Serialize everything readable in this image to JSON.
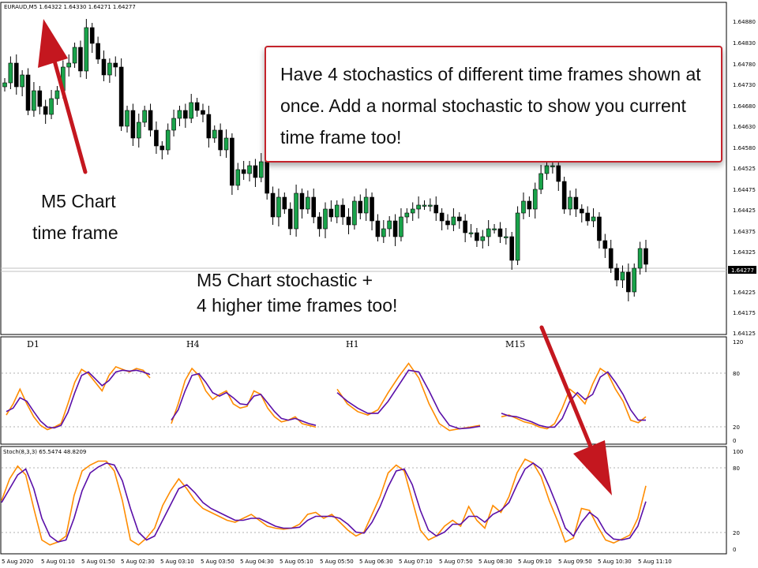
{
  "chart_header": {
    "symbol_line": "EURAUD,M5  1.64322 1.64330 1.64271 1.64277"
  },
  "annotations": {
    "callout": "Have 4 stochastics of different time frames shown at once. Add a normal stochastic to show you current time frame too!",
    "timeframe_note": [
      "M5 Chart",
      "time frame"
    ],
    "stochastic_note": [
      "M5 Chart stochastic +",
      "4 higher time frames too!"
    ]
  },
  "colors": {
    "bull_candle": "#19a34a",
    "bear_candle": "#000000",
    "stoch_main": "#ff8c00",
    "stoch_signal": "#5a0fa8",
    "arrow": "#c4171f",
    "callout_border": "#c4232b"
  },
  "chart_data": [
    {
      "type": "candlestick",
      "title": "EURAUD,M5",
      "current_price": "1.64277",
      "ylim": [
        1.641,
        1.649
      ],
      "y_ticks": [
        "1.64880",
        "1.64830",
        "1.64780",
        "1.64730",
        "1.64680",
        "1.64630",
        "1.64580",
        "1.64525",
        "1.64475",
        "1.64425",
        "1.64375",
        "1.64325",
        "1.64277",
        "1.64225",
        "1.64175",
        "1.64125"
      ],
      "closes": [
        1.6473,
        1.6478,
        1.6472,
        1.6475,
        1.6466,
        1.6471,
        1.6467,
        1.6465,
        1.6469,
        1.6471,
        1.6477,
        1.6478,
        1.6482,
        1.6476,
        1.6487,
        1.6483,
        1.6479,
        1.6475,
        1.6478,
        1.6477,
        1.6462,
        1.6466,
        1.6459,
        1.6463,
        1.6466,
        1.6461,
        1.6457,
        1.6456,
        1.6461,
        1.6464,
        1.6466,
        1.6464,
        1.6468,
        1.6466,
        1.6465,
        1.6459,
        1.6461,
        1.6456,
        1.6459,
        1.6447,
        1.6451,
        1.645,
        1.6452,
        1.6449,
        1.6453,
        1.6445,
        1.6439,
        1.6444,
        1.6441,
        1.6436,
        1.6445,
        1.6441,
        1.6444,
        1.6439,
        1.6436,
        1.6441,
        1.6439,
        1.6442,
        1.6439,
        1.6437,
        1.6443,
        1.644,
        1.6444,
        1.6438,
        1.6434,
        1.6436,
        1.6438,
        1.6434,
        1.6439,
        1.644,
        1.6441,
        1.6442,
        1.6442,
        1.6442,
        1.644,
        1.6438,
        1.6437,
        1.6439,
        1.6438,
        1.6435,
        1.6435,
        1.6433,
        1.6434,
        1.6436,
        1.6436,
        1.6434,
        1.6434,
        1.6428,
        1.644,
        1.6443,
        1.6441,
        1.6446,
        1.645,
        1.6452,
        1.6452,
        1.6448,
        1.6441,
        1.6444,
        1.6441,
        1.644,
        1.6438,
        1.6439,
        1.6433,
        1.6431,
        1.6426,
        1.6423,
        1.6425,
        1.642,
        1.6426,
        1.6431,
        1.6427
      ]
    },
    {
      "type": "line",
      "title": "",
      "ylim": [
        0,
        120
      ],
      "y_ticks": [
        "120",
        "80",
        "20",
        "0"
      ],
      "panel_labels": [
        "D1",
        "H4",
        "H1",
        "M15"
      ],
      "series": [
        {
          "values": [
            32,
            45,
            62,
            45,
            30,
            20,
            15,
            18,
            22,
            45,
            70,
            85,
            80,
            70,
            60,
            78,
            88,
            85,
            82,
            86,
            84,
            75
          ]
        },
        {
          "values": [
            36,
            40,
            52,
            48,
            36,
            25,
            18,
            17,
            20,
            35,
            58,
            78,
            82,
            74,
            66,
            72,
            82,
            84,
            83,
            84,
            82,
            79
          ]
        },
        {
          "values": [
            22,
            45,
            72,
            86,
            78,
            60,
            50,
            56,
            60,
            45,
            40,
            42,
            60,
            56,
            40,
            30,
            24,
            26,
            30,
            22,
            20,
            18
          ]
        },
        {
          "values": [
            26,
            38,
            60,
            78,
            80,
            70,
            58,
            54,
            58,
            52,
            45,
            44,
            54,
            56,
            46,
            36,
            28,
            26,
            28,
            25,
            22,
            20
          ]
        },
        {
          "values": [
            62,
            45,
            36,
            32,
            38,
            58,
            76,
            92,
            75,
            45,
            22,
            14,
            16,
            18,
            20
          ]
        },
        {
          "values": [
            58,
            48,
            40,
            34,
            34,
            48,
            66,
            84,
            82,
            60,
            36,
            20,
            16,
            17,
            19
          ]
        },
        {
          "values": [
            30,
            32,
            28,
            24,
            22,
            18,
            16,
            22,
            40,
            62,
            55,
            45,
            68,
            86,
            80,
            62,
            48,
            26,
            23,
            30
          ]
        },
        {
          "values": [
            34,
            31,
            30,
            27,
            24,
            20,
            18,
            18,
            28,
            48,
            58,
            50,
            56,
            76,
            82,
            70,
            56,
            38,
            26,
            26
          ]
        }
      ]
    },
    {
      "type": "line",
      "title": "Stoch(8,3,3) 65.5474 48.8209",
      "ylim": [
        0,
        100
      ],
      "y_ticks": [
        "100",
        "80",
        "20",
        "0"
      ],
      "x_ticks": [
        "5 Aug 2020",
        "5 Aug 01:10",
        "5 Aug 01:50",
        "5 Aug 02:30",
        "5 Aug 03:10",
        "5 Aug 03:50",
        "5 Aug 04:30",
        "5 Aug 05:10",
        "5 Aug 05:50",
        "5 Aug 06:30",
        "5 Aug 07:10",
        "5 Aug 07:50",
        "5 Aug 08:30",
        "5 Aug 09:10",
        "5 Aug 09:50",
        "5 Aug 10:30",
        "5 Aug 11:10"
      ],
      "series": [
        {
          "name": "Stoch(8,3,3)",
          "values": [
            50,
            72,
            85,
            76,
            42,
            10,
            5,
            8,
            14,
            55,
            80,
            86,
            90,
            90,
            80,
            50,
            10,
            5,
            12,
            22,
            45,
            60,
            72,
            62,
            50,
            42,
            38,
            34,
            30,
            28,
            32,
            36,
            30,
            24,
            22,
            21,
            22,
            26,
            36,
            38,
            32,
            36,
            28,
            20,
            14,
            18,
            36,
            54,
            78,
            86,
            80,
            50,
            20,
            10,
            14,
            24,
            30,
            24,
            44,
            30,
            22,
            45,
            38,
            54,
            78,
            92,
            88,
            74,
            50,
            30,
            8,
            12,
            42,
            40,
            24,
            10,
            7,
            11,
            15,
            32,
            65
          ]
        },
        {
          "name": "",
          "values": [
            48,
            62,
            76,
            82,
            62,
            32,
            14,
            8,
            10,
            32,
            60,
            78,
            84,
            88,
            86,
            70,
            42,
            18,
            10,
            14,
            30,
            46,
            62,
            66,
            58,
            48,
            42,
            38,
            34,
            30,
            30,
            32,
            32,
            28,
            24,
            22,
            22,
            23,
            30,
            34,
            34,
            34,
            32,
            26,
            18,
            17,
            28,
            44,
            64,
            80,
            82,
            66,
            40,
            20,
            14,
            18,
            26,
            26,
            34,
            34,
            28,
            36,
            40,
            48,
            66,
            82,
            88,
            82,
            64,
            44,
            22,
            14,
            28,
            38,
            32,
            18,
            11,
            10,
            12,
            24,
            49
          ]
        }
      ]
    }
  ],
  "labels": {
    "overbought": "80",
    "oversold": "20"
  }
}
